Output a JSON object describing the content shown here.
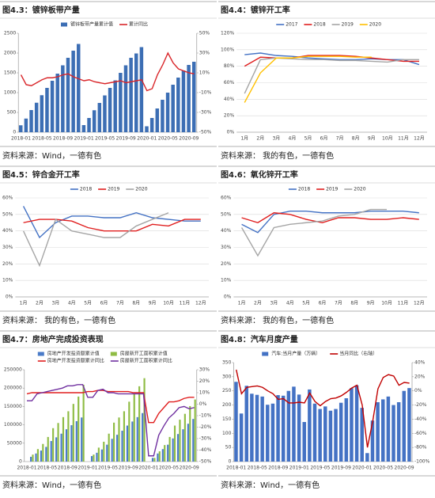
{
  "chart_data": [
    {
      "type": "combo",
      "title": "图4.3：镀锌板带产量",
      "source": "资料来源：Wind，一德有色",
      "categories": [
        "2018-01",
        null,
        null,
        null,
        "2018-05",
        null,
        null,
        null,
        "2018-09",
        null,
        null,
        null,
        "2019-01",
        null,
        null,
        null,
        "2019-05",
        null,
        null,
        null,
        "2019-09",
        null,
        null,
        null,
        "2020-01",
        null,
        null,
        null,
        "2020-05",
        null,
        null,
        null,
        "2020-09",
        null
      ],
      "series": [
        {
          "name": "镀锌板带产量累计值",
          "color": "#3c6eb4",
          "type": "bar",
          "values": [
            175,
            345,
            560,
            745,
            935,
            1120,
            1300,
            1480,
            1690,
            1880,
            2060,
            2230,
            180,
            360,
            555,
            740,
            930,
            1120,
            1310,
            1500,
            1690,
            1880,
            1990,
            2150,
            150,
            360,
            600,
            820,
            1000,
            1200,
            1380,
            1560,
            1700,
            1780
          ]
        },
        {
          "name": "累计同比",
          "color": "#d9262a",
          "type": "line",
          "axis": "y2",
          "values": [
            8,
            -2,
            -3,
            0,
            3,
            5,
            5,
            6,
            8,
            9,
            6,
            4,
            2,
            3,
            1,
            0,
            -1,
            0,
            1,
            2,
            0,
            1,
            2,
            3,
            -8,
            -6,
            8,
            18,
            30,
            20,
            14,
            12,
            10,
            9
          ]
        }
      ],
      "ylim": [
        0,
        2500
      ],
      "yticks": [
        0,
        500,
        1000,
        1500,
        2000,
        2500
      ],
      "y2lim": [
        -50,
        50
      ],
      "y2ticks": [
        {
          "value": 50,
          "label": "50%"
        },
        {
          "value": 30,
          "label": "30%"
        },
        {
          "value": 10,
          "label": "10%"
        },
        {
          "value": -10,
          "label": "-10%"
        },
        {
          "value": -30,
          "label": "-30%"
        },
        {
          "value": -50,
          "label": "-50%"
        }
      ],
      "grid": false
    },
    {
      "type": "line",
      "title": "图4.4：镀锌开工率",
      "source": "资料来源： 我的有色，一德有色",
      "categories": [
        "1月",
        "2月",
        "3月",
        "4月",
        "5月",
        "6月",
        "7月",
        "8月",
        "9月",
        "10月",
        "11月",
        "12月"
      ],
      "series": [
        {
          "name": "2017",
          "color": "#4472c4",
          "values": [
            94,
            96,
            93,
            92,
            90,
            89,
            88,
            88,
            89,
            88,
            88,
            82
          ]
        },
        {
          "name": "2018",
          "color": "#e01e1e",
          "values": [
            80,
            91,
            90,
            90,
            93,
            93,
            93,
            92,
            90,
            88,
            86,
            86
          ]
        },
        {
          "name": "2019",
          "color": "#a5a5a5",
          "values": [
            47,
            88,
            90,
            89,
            88,
            88,
            87,
            87,
            86,
            85,
            88,
            88
          ]
        },
        {
          "name": "2020",
          "color": "#ffc000",
          "values": [
            36,
            72,
            90,
            90,
            92,
            92,
            92,
            91,
            91,
            null,
            null,
            null
          ]
        }
      ],
      "ylim": [
        0,
        120
      ],
      "yticks": [
        {
          "value": 0,
          "label": "0%"
        },
        {
          "value": 20,
          "label": "20%"
        },
        {
          "value": 40,
          "label": "40%"
        },
        {
          "value": 60,
          "label": "60%"
        },
        {
          "value": 80,
          "label": "80%"
        },
        {
          "value": 100,
          "label": "100%"
        },
        {
          "value": 120,
          "label": "120%"
        }
      ],
      "grid": true
    },
    {
      "type": "line",
      "title": "图4.5：锌合金开工率",
      "source": "资料来源： 我的有色，一德有色",
      "categories": [
        "1月",
        "2月",
        "3月",
        "4月",
        "5月",
        "6月",
        "7月",
        "8月",
        "9月",
        "10月",
        "11月",
        "12月"
      ],
      "series": [
        {
          "name": "2018",
          "color": "#4472c4",
          "values": [
            55,
            36,
            45,
            49,
            49,
            48,
            48,
            51,
            48,
            47,
            46,
            46
          ]
        },
        {
          "name": "2019",
          "color": "#e01e1e",
          "values": [
            45,
            47,
            47,
            46,
            42,
            40,
            40,
            40,
            44,
            43,
            47,
            47
          ]
        },
        {
          "name": "2020",
          "color": "#a5a5a5",
          "values": [
            40,
            19,
            47,
            40,
            38,
            36,
            36,
            43,
            47,
            51,
            null,
            null
          ]
        }
      ],
      "ylim": [
        0,
        60
      ],
      "yticks": [
        {
          "value": 0,
          "label": "0%"
        },
        {
          "value": 10,
          "label": "10%"
        },
        {
          "value": 20,
          "label": "20%"
        },
        {
          "value": 30,
          "label": "30%"
        },
        {
          "value": 40,
          "label": "40%"
        },
        {
          "value": 50,
          "label": "50%"
        },
        {
          "value": 60,
          "label": "60%"
        }
      ],
      "grid": true
    },
    {
      "type": "line",
      "title": "图4.6：氧化锌开工率",
      "source": "资料来源： 我的有色，一德有色",
      "categories": [
        "1月",
        "2月",
        "3月",
        "4月",
        "5月",
        "6月",
        "7月",
        "8月",
        "9月",
        "10月",
        "11月",
        "12月"
      ],
      "series": [
        {
          "name": "2018",
          "color": "#4472c4",
          "values": [
            44,
            39,
            50,
            52,
            52,
            51,
            51,
            51,
            52,
            52,
            52,
            51
          ]
        },
        {
          "name": "2019",
          "color": "#e01e1e",
          "values": [
            48,
            45,
            51,
            50,
            47,
            45,
            48,
            48,
            47,
            47,
            48,
            47
          ]
        },
        {
          "name": "2020",
          "color": "#a5a5a5",
          "values": [
            42,
            25,
            42,
            44,
            45,
            46,
            49,
            50,
            53,
            53,
            null,
            null
          ]
        }
      ],
      "ylim": [
        0,
        60
      ],
      "yticks": [
        {
          "value": 0,
          "label": "0%"
        },
        {
          "value": 10,
          "label": "10%"
        },
        {
          "value": 20,
          "label": "20%"
        },
        {
          "value": 30,
          "label": "30%"
        },
        {
          "value": 40,
          "label": "40%"
        },
        {
          "value": 50,
          "label": "50%"
        },
        {
          "value": 60,
          "label": "60%"
        }
      ],
      "grid": true
    },
    {
      "type": "combo",
      "title": "图4.7：房地产完成投资表现",
      "source": "资料来源：Wind，一德有色",
      "categories": [
        "2018-01",
        null,
        null,
        null,
        "2018-05",
        null,
        null,
        null,
        "2018-09",
        null,
        null,
        null,
        "2019-01",
        null,
        null,
        null,
        "2019-05",
        null,
        null,
        null,
        "2019-09",
        null,
        null,
        null,
        "2020-01",
        null,
        null,
        null,
        "2020-05",
        null,
        null,
        null,
        "2020-09",
        null
      ],
      "series": [
        {
          "name": "房地产开发投资额累计值",
          "color": "#4a7bc8",
          "type": "bar",
          "values": [
            null,
            13000,
            22000,
            30000,
            40000,
            56000,
            66000,
            76000,
            88000,
            99000,
            110000,
            120000,
            null,
            15000,
            24000,
            33000,
            46000,
            62000,
            73000,
            84000,
            98000,
            109000,
            121000,
            132000,
            null,
            10000,
            22000,
            34000,
            46000,
            63000,
            75000,
            88000,
            103000,
            116000
          ]
        },
        {
          "name": "房屋新开工面积累计值",
          "color": "#8fbc44",
          "type": "bar",
          "values": [
            null,
            19000,
            34000,
            48000,
            67000,
            91000,
            105000,
            121000,
            137000,
            157000,
            177000,
            209000,
            null,
            19000,
            38000,
            54000,
            76000,
            106000,
            120000,
            137000,
            163000,
            184000,
            205000,
            227000,
            null,
            10000,
            28000,
            45000,
            67000,
            98000,
            114000,
            130000,
            151000,
            169000
          ]
        },
        {
          "name": "房地产开发投资额累计同比",
          "color": "#e01e1e",
          "type": "line",
          "axis": "y2",
          "values": [
            9,
            10,
            10,
            10,
            10,
            10,
            10,
            10,
            10,
            10,
            10,
            10,
            11,
            11,
            12,
            12,
            11,
            11,
            11,
            11,
            11,
            10,
            10,
            10,
            -16,
            -16,
            -8,
            -3,
            2,
            2,
            3,
            5,
            6,
            6
          ]
        },
        {
          "name": "房屋新开工面积累计同比",
          "color": "#7030a0",
          "type": "line",
          "axis": "y2",
          "values": [
            3,
            3,
            9,
            10,
            11,
            12,
            13,
            14,
            16,
            16,
            17,
            17,
            6,
            6,
            12,
            13,
            10,
            10,
            9,
            9,
            9,
            9,
            9,
            9,
            -45,
            -45,
            -27,
            -19,
            -12,
            -8,
            -3,
            -2,
            -4,
            -3
          ]
        }
      ],
      "ylim": [
        0,
        250000
      ],
      "yticks": [
        0,
        50000,
        100000,
        150000,
        200000,
        250000
      ],
      "y2lim": [
        -50,
        30
      ],
      "y2ticks": [
        {
          "value": 30,
          "label": "30%"
        },
        {
          "value": 20,
          "label": "20%"
        },
        {
          "value": 10,
          "label": "10%"
        },
        {
          "value": 0,
          "label": "0%"
        },
        {
          "value": -10,
          "label": "-10%"
        },
        {
          "value": -20,
          "label": "-20%"
        },
        {
          "value": -30,
          "label": "-30%"
        },
        {
          "value": -40,
          "label": "-40%"
        },
        {
          "value": -50,
          "label": "-50%"
        }
      ],
      "grid": false
    },
    {
      "type": "combo",
      "title": "图4.8：汽车月度产量",
      "source": "资料来源：Wind，一德有色",
      "categories": [
        "2018-01",
        null,
        null,
        null,
        "2018-05",
        null,
        null,
        null,
        "2018-09",
        null,
        null,
        null,
        "2019-01",
        null,
        null,
        null,
        "2019-05",
        null,
        null,
        null,
        "2019-09",
        null,
        null,
        null,
        "2020-01",
        null,
        null,
        null,
        "2020-05",
        null,
        null,
        null,
        "2020-09",
        null
      ],
      "series": [
        {
          "name": "汽车:当月产量（万辆）",
          "color": "#4472c4",
          "type": "bar",
          "values": [
            282,
            170,
            268,
            240,
            236,
            230,
            201,
            205,
            235,
            233,
            250,
            265,
            237,
            140,
            255,
            205,
            186,
            195,
            180,
            186,
            208,
            224,
            260,
            270,
            190,
            30,
            145,
            210,
            220,
            230,
            200,
            210,
            250,
            260
          ]
        },
        {
          "name": "当月同比（右轴）",
          "color": "#c00000",
          "type": "line",
          "axis": "y2",
          "values": [
            30,
            -4,
            5,
            6,
            7,
            5,
            0,
            -4,
            -12,
            -11,
            -17,
            -17,
            -16,
            -17,
            -3,
            -15,
            -21,
            -15,
            -11,
            -10,
            -7,
            -2,
            4,
            8,
            -20,
            -80,
            -43,
            3,
            19,
            23,
            21,
            8,
            12,
            11
          ]
        }
      ],
      "ylim": [
        0,
        350
      ],
      "yticks": [
        0,
        50,
        100,
        150,
        200,
        250,
        300,
        350
      ],
      "y2lim": [
        -100,
        40
      ],
      "y2ticks": [
        {
          "value": 40,
          "label": "40%"
        },
        {
          "value": 20,
          "label": "20%"
        },
        {
          "value": 0,
          "label": "0%"
        },
        {
          "value": -20,
          "label": "-20%"
        },
        {
          "value": -40,
          "label": "-40%"
        },
        {
          "value": -60,
          "label": "-60%"
        },
        {
          "value": -80,
          "label": "-80%"
        },
        {
          "value": -100,
          "label": "-100%"
        }
      ],
      "grid": false
    }
  ]
}
